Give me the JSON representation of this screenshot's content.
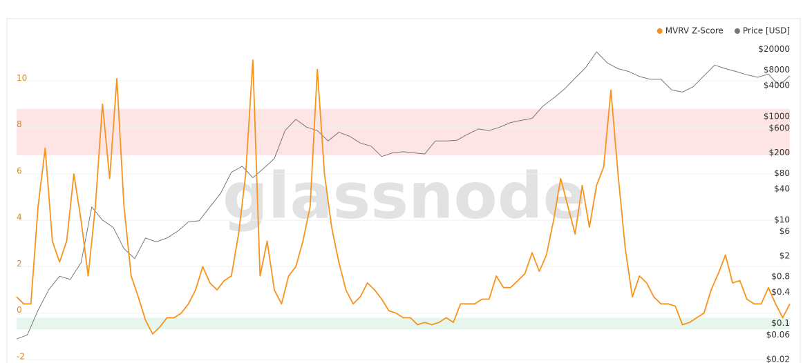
{
  "chart_data": {
    "type": "line",
    "watermark": "glassnode",
    "legend": "top-right",
    "grid": true,
    "ylim": [
      -2,
      12
    ],
    "yticks": [
      -2,
      0,
      2,
      4,
      6,
      8,
      10
    ],
    "y2log": true,
    "y2lim": [
      0.02,
      39000
    ],
    "y2ticks": [
      {
        "value": 20000,
        "label": "$20000"
      },
      {
        "value": 8000,
        "label": "$8000"
      },
      {
        "value": 4000,
        "label": "$4000"
      },
      {
        "value": 1000,
        "label": "$1000"
      },
      {
        "value": 600,
        "label": "$600"
      },
      {
        "value": 200,
        "label": "$200"
      },
      {
        "value": 80,
        "label": "$80"
      },
      {
        "value": 40,
        "label": "$40"
      },
      {
        "value": 10,
        "label": "$10"
      },
      {
        "value": 6,
        "label": "$6"
      },
      {
        "value": 2,
        "label": "$2"
      },
      {
        "value": 0.8,
        "label": "$0.8"
      },
      {
        "value": 0.4,
        "label": "$0.4"
      },
      {
        "value": 0.1,
        "label": "$0.1"
      },
      {
        "value": 0.06,
        "label": "$0.06"
      },
      {
        "value": 0.02,
        "label": "$0.02"
      }
    ],
    "bands": [
      {
        "from": 6.8,
        "to": 8.8,
        "color": "#fde5e5"
      },
      {
        "from": -0.7,
        "to": -0.2,
        "color": "#e6f6ec"
      }
    ],
    "series": [
      {
        "name": "MVRV Z-Score",
        "color": "#f7931a",
        "axis": "y",
        "values": [
          0.7,
          0.4,
          0.4,
          4.6,
          7.1,
          3.1,
          2.2,
          3.1,
          6.0,
          4.0,
          1.6,
          4.6,
          9.0,
          5.8,
          10.1,
          4.6,
          1.6,
          0.7,
          -0.3,
          -0.9,
          -0.6,
          -0.2,
          -0.2,
          0,
          0.4,
          1.0,
          2.0,
          1.3,
          1.0,
          1.4,
          1.6,
          3.4,
          6.0,
          10.9,
          1.6,
          3.1,
          1.0,
          0.4,
          1.6,
          2.0,
          3.1,
          4.6,
          10.5,
          6.0,
          3.7,
          2.2,
          1.0,
          0.4,
          0.7,
          1.3,
          1.0,
          0.6,
          0.1,
          0,
          -0.2,
          -0.2,
          -0.5,
          -0.4,
          -0.5,
          -0.4,
          -0.2,
          -0.4,
          0.4,
          0.4,
          0.4,
          0.6,
          0.6,
          1.6,
          1.1,
          1.1,
          1.4,
          1.7,
          2.6,
          1.8,
          2.5,
          4.0,
          5.8,
          4.6,
          3.4,
          5.5,
          3.7,
          5.5,
          6.3,
          9.6,
          6.0,
          2.8,
          0.7,
          1.6,
          1.3,
          0.7,
          0.4,
          0.4,
          0.3,
          -0.5,
          -0.4,
          -0.2,
          0,
          1.0,
          1.7,
          2.5,
          1.3,
          1.4,
          0.6,
          0.4,
          0.4,
          1.1,
          0.4,
          -0.2,
          0.4
        ]
      },
      {
        "name": "Price [USD]",
        "color": "#777777",
        "axis": "y2",
        "values": [
          0.05,
          0.06,
          0.18,
          0.45,
          0.82,
          0.71,
          1.5,
          18,
          10,
          7.2,
          2.8,
          1.8,
          4.5,
          3.8,
          4.5,
          6.1,
          9.2,
          9.7,
          18,
          33,
          84,
          110,
          66,
          100,
          155,
          540,
          890,
          630,
          540,
          340,
          500,
          420,
          310,
          270,
          170,
          200,
          210,
          200,
          190,
          340,
          340,
          350,
          460,
          580,
          540,
          630,
          770,
          850,
          930,
          1600,
          2300,
          3400,
          5600,
          9000,
          18000,
          11000,
          8500,
          7500,
          6000,
          5300,
          5300,
          3300,
          3000,
          3800,
          6200,
          10000,
          8500,
          7500,
          6500,
          5800,
          6700,
          4000,
          6200
        ]
      }
    ]
  }
}
